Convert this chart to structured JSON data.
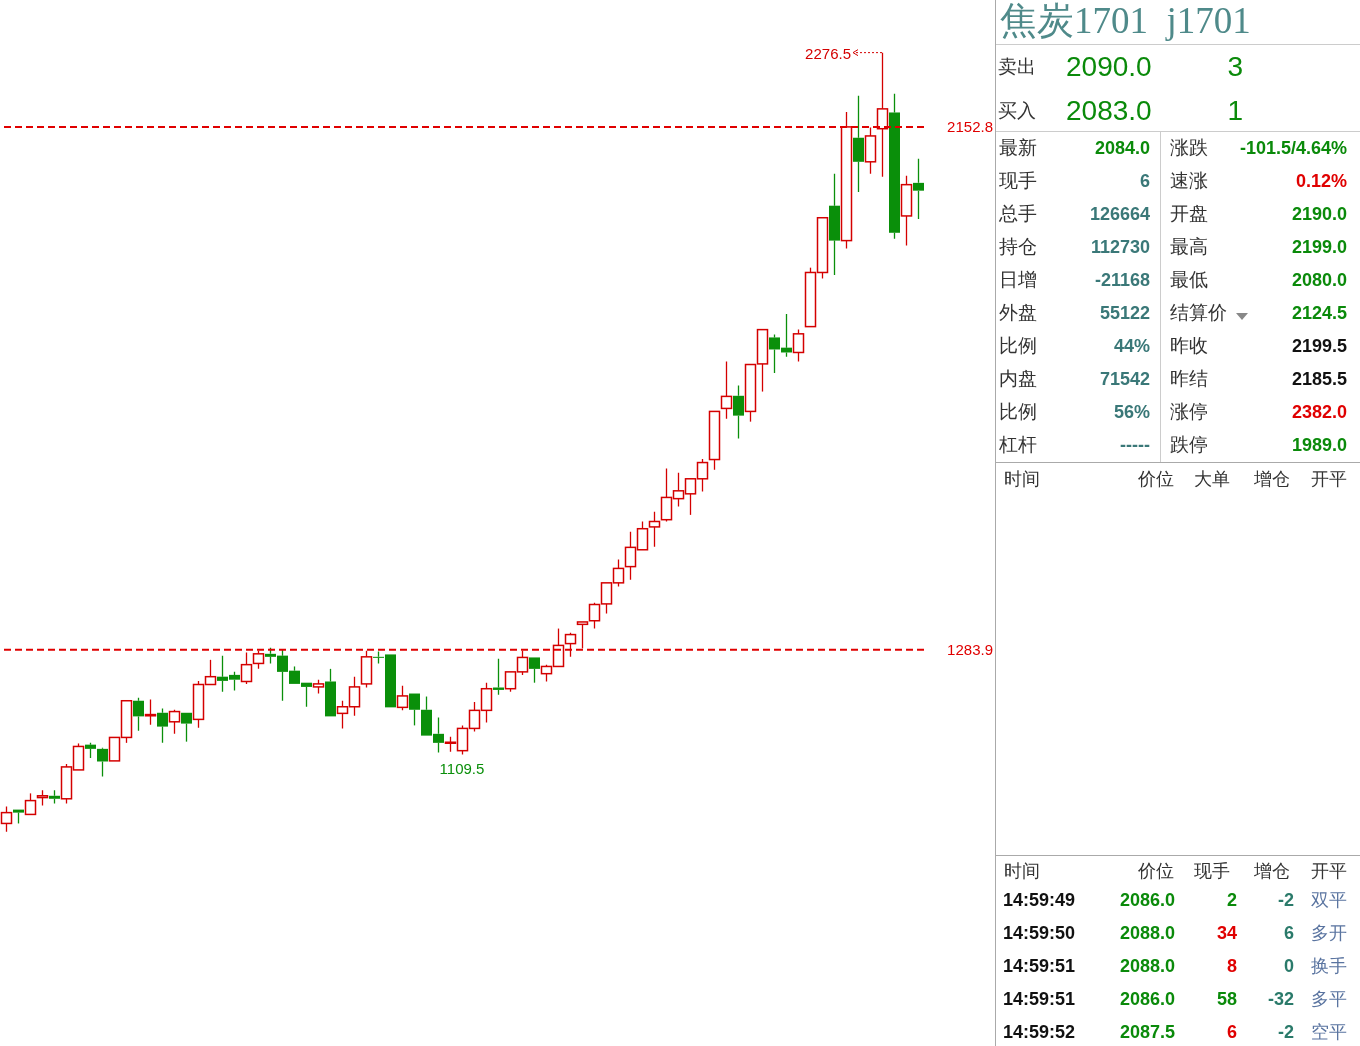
{
  "chart_data": [
    {
      "type": "candlestick",
      "categories": [
        null,
        null,
        null,
        null,
        null,
        null,
        null,
        null,
        null,
        null,
        null,
        null,
        null,
        null,
        null,
        null,
        null,
        null,
        null,
        null,
        null,
        null,
        null,
        null,
        null,
        null,
        null,
        null,
        null,
        null,
        null,
        null,
        null,
        null,
        null,
        null,
        null,
        null,
        null,
        null,
        null,
        null,
        null,
        null,
        null,
        null,
        null,
        null,
        null,
        null,
        null,
        null,
        null,
        null,
        null,
        null,
        null,
        null,
        null,
        null,
        null,
        null,
        null,
        null,
        null,
        null,
        null,
        null,
        null,
        null,
        null,
        null,
        null,
        null,
        null,
        null,
        null
      ],
      "ohlc": [
        [
          995,
          1023,
          981,
          1013
        ],
        [
          1018,
          1018,
          995,
          1013
        ],
        [
          1010,
          1045,
          1010,
          1033
        ],
        [
          1038,
          1050,
          1025,
          1041
        ],
        [
          1041,
          1050,
          1028,
          1036
        ],
        [
          1036,
          1094,
          1028,
          1089
        ],
        [
          1084,
          1128,
          1084,
          1123
        ],
        [
          1126,
          1129,
          1104,
          1119
        ],
        [
          1119,
          1121,
          1073,
          1098
        ],
        [
          1099,
          1138,
          1099,
          1138
        ],
        [
          1138,
          1199,
          1129,
          1199
        ],
        [
          1199,
          1204,
          1149,
          1173
        ],
        [
          1174,
          1201,
          1159,
          1176
        ],
        [
          1179,
          1186,
          1129,
          1156
        ],
        [
          1164,
          1184,
          1144,
          1181
        ],
        [
          1179,
          1179,
          1131,
          1161
        ],
        [
          1168,
          1232,
          1154,
          1226
        ],
        [
          1226,
          1267,
          1226,
          1239
        ],
        [
          1239,
          1274,
          1214,
          1232
        ],
        [
          1242,
          1247,
          1216,
          1234
        ],
        [
          1231,
          1279,
          1227,
          1259
        ],
        [
          1261,
          1282,
          1252,
          1277
        ],
        [
          1277,
          1287,
          1261,
          1272
        ],
        [
          1274,
          1284,
          1199,
          1247
        ],
        [
          1249,
          1256,
          1227,
          1227
        ],
        [
          1229,
          1229,
          1189,
          1222
        ],
        [
          1222,
          1234,
          1211,
          1227
        ],
        [
          1231,
          1252,
          1173,
          1173
        ],
        [
          1178,
          1199,
          1153,
          1189
        ],
        [
          1189,
          1239,
          1174,
          1222
        ],
        [
          1227,
          1282,
          1221,
          1272
        ],
        [
          1272,
          1281,
          1261,
          1271
        ],
        [
          1276,
          1276,
          1188,
          1188
        ],
        [
          1188,
          1224,
          1183,
          1207
        ],
        [
          1211,
          1211,
          1158,
          1184
        ],
        [
          1184,
          1206,
          1141,
          1141
        ],
        [
          1144,
          1171,
          1113,
          1129
        ],
        [
          1129,
          1139,
          1114,
          1130
        ],
        [
          1116,
          1158,
          1109.5,
          1153
        ],
        [
          1153,
          1197,
          1148,
          1183
        ],
        [
          1183,
          1229,
          1163,
          1219
        ],
        [
          1221,
          1269,
          1209,
          1217
        ],
        [
          1219,
          1247,
          1214,
          1247
        ],
        [
          1247,
          1282,
          1242,
          1271
        ],
        [
          1271,
          1271,
          1229,
          1252
        ],
        [
          1244,
          1259,
          1231,
          1256
        ],
        [
          1256,
          1319,
          1256,
          1291
        ],
        [
          1294,
          1312,
          1272,
          1309
        ],
        [
          1326,
          1330,
          1286,
          1330
        ],
        [
          1332,
          1362,
          1319,
          1359
        ],
        [
          1360,
          1395,
          1344,
          1395
        ],
        [
          1395,
          1434,
          1389,
          1419
        ],
        [
          1422,
          1480,
          1400,
          1454
        ],
        [
          1450,
          1497,
          1450,
          1485
        ],
        [
          1488,
          1513,
          1455,
          1497
        ],
        [
          1500,
          1585,
          1497,
          1537
        ],
        [
          1535,
          1578,
          1522,
          1548
        ],
        [
          1543,
          1568,
          1508,
          1568
        ],
        [
          1568,
          1601,
          1547,
          1595
        ],
        [
          1600,
          1680,
          1583,
          1680
        ],
        [
          1685,
          1763,
          1668,
          1705
        ],
        [
          1706,
          1723,
          1635,
          1673
        ],
        [
          1680,
          1758,
          1663,
          1758
        ],
        [
          1759,
          1816,
          1713,
          1816
        ],
        [
          1803,
          1808,
          1744,
          1783
        ],
        [
          1786,
          1842,
          1771,
          1778
        ],
        [
          1778,
          1816,
          1763,
          1809
        ],
        [
          1821,
          1919,
          1821,
          1911
        ],
        [
          1911,
          2002,
          1901,
          2002
        ],
        [
          2022,
          2075,
          1907,
          1964
        ],
        [
          1964,
          2178,
          1951,
          2153
        ],
        [
          2135,
          2205,
          2045,
          2095
        ],
        [
          2095,
          2152,
          2075,
          2138
        ],
        [
          2150,
          2276.5,
          2070,
          2183
        ],
        [
          2177,
          2208,
          1967,
          1977
        ],
        [
          2005,
          2072,
          1956,
          2057
        ],
        [
          2060,
          2100,
          2000,
          2047
        ]
      ],
      "colors": [
        "#d40000",
        "#0a8f0a",
        "#d40000",
        "#d40000",
        "#0a8f0a",
        "#d40000",
        "#d40000",
        "#0a8f0a",
        "#0a8f0a",
        "#d40000",
        "#d40000",
        "#0a8f0a",
        "#d40000",
        "#0a8f0a",
        "#d40000",
        "#0a8f0a",
        "#d40000",
        "#d40000",
        "#0a8f0a",
        "#0a8f0a",
        "#d40000",
        "#d40000",
        "#0a8f0a",
        "#0a8f0a",
        "#0a8f0a",
        "#0a8f0a",
        "#d40000",
        "#0a8f0a",
        "#d40000",
        "#d40000",
        "#d40000",
        "#0a8f0a",
        "#0a8f0a",
        "#d40000",
        "#0a8f0a",
        "#0a8f0a",
        "#0a8f0a",
        "#d40000",
        "#d40000",
        "#d40000",
        "#d40000",
        "#0a8f0a",
        "#d40000",
        "#d40000",
        "#0a8f0a",
        "#d40000",
        "#d40000",
        "#d40000",
        "#d40000",
        "#d40000",
        "#d40000",
        "#d40000",
        "#d40000",
        "#d40000",
        "#d40000",
        "#d40000",
        "#d40000",
        "#d40000",
        "#d40000",
        "#d40000",
        "#d40000",
        "#0a8f0a",
        "#d40000",
        "#d40000",
        "#0a8f0a",
        "#0a8f0a",
        "#d40000",
        "#d40000",
        "#d40000",
        "#0a8f0a",
        "#d40000",
        "#0a8f0a",
        "#d40000",
        "#d40000",
        "#0a8f0a",
        "#d40000",
        "#0a8f0a"
      ],
      "ylim": [
        625,
        2364
      ],
      "yticks": [
        1283.9,
        2152.8
      ],
      "ref_lines": [
        {
          "axis": "y",
          "value": 2152.8,
          "color": "#e00000",
          "line_style": "dashed"
        },
        {
          "axis": "y",
          "value": 1283.9,
          "color": "#e00000",
          "line_style": "dashed"
        }
      ],
      "annotations": [
        "2276.5",
        "1109.5"
      ]
    },
    {
      "type": "other",
      "title": "焦炭1701  j1701",
      "annotations": [
        "卖出",
        "2090.0",
        "3",
        "买入",
        "2083.0",
        "1",
        "最新",
        "2084.0",
        "涨跌",
        "-101.5/4.64%",
        "现手",
        "6",
        "速涨",
        "0.12%",
        "总手",
        "126664",
        "开盘",
        "2190.0",
        "持仓",
        "112730",
        "最高",
        "2199.0",
        "日增",
        "-21168",
        "最低",
        "2080.0",
        "外盘",
        "55122",
        "结算价",
        "2124.5",
        "比例",
        "44%",
        "昨收",
        "2199.5",
        "内盘",
        "71542",
        "昨结",
        "2185.5",
        "比例",
        "56%",
        "涨停",
        "2382.0",
        "杠杆",
        "-----",
        "跌停",
        "1989.0",
        "时间",
        "价位",
        "大单",
        "增仓",
        "开平",
        "时间",
        "价位",
        "现手",
        "增仓",
        "开平",
        "14:59:49",
        "2086.0",
        "2",
        "-2",
        "双平",
        "14:59:50",
        "2088.0",
        "34",
        "6",
        "多开",
        "14:59:51",
        "2088.0",
        "8",
        "0",
        "换手",
        "14:59:51",
        "2086.0",
        "58",
        "-32",
        "多平",
        "14:59:52",
        "2087.5",
        "6",
        "-2",
        "空平"
      ]
    }
  ]
}
